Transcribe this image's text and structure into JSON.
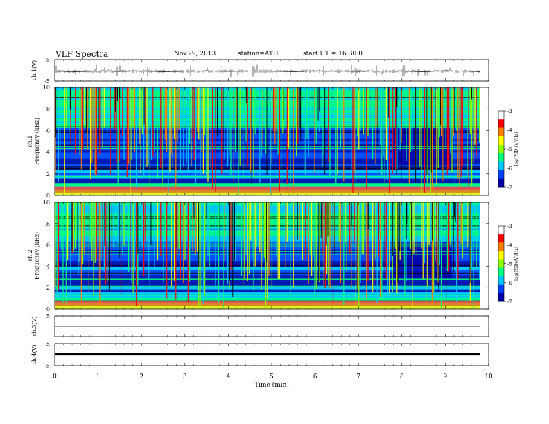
{
  "header": {
    "title": "VLF  Spectra",
    "date": "Nov.29, 2013",
    "station": "station=ATH",
    "start": "start  UT =   16:30:0"
  },
  "chart_data": [
    {
      "type": "line",
      "panel": "ch.1",
      "ylabel": "ch.1(V)",
      "ylim": [
        -5,
        5
      ],
      "yticks": [
        -5,
        5
      ],
      "x": [
        0,
        0.5,
        1.0,
        1.5,
        2.0,
        2.5,
        3.0,
        3.5,
        4.0,
        4.5,
        5.0,
        5.5,
        6.0,
        6.5,
        7.0,
        7.5,
        8.0,
        8.5,
        9.0,
        9.5,
        9.8
      ],
      "y": [
        -0.4,
        -0.6,
        -0.3,
        -0.5,
        -0.3,
        -0.6,
        -0.4,
        -0.2,
        -0.5,
        -0.3,
        -0.4,
        -0.6,
        -0.3,
        -0.4,
        -0.5,
        -0.3,
        -0.4,
        -0.6,
        -0.2,
        -0.4,
        -0.6
      ]
    },
    {
      "type": "heatmap",
      "panel": "ch.1",
      "ylabel_lines": [
        "ch.1",
        "Frequency  (kHz)"
      ],
      "ylim": [
        0,
        10
      ],
      "yticks": [
        0,
        2,
        4,
        6,
        8,
        10
      ],
      "colorbar": {
        "label": "log(PSD)(V²/Hz)",
        "range": [
          -7,
          -3
        ],
        "ticks": [
          "-3",
          "-4",
          "-5",
          "-6",
          "-7"
        ]
      },
      "notes": "broadband impulsive emissions 0-10 kHz, strongest below 1 kHz; quieter band 3-6 kHz after t=7.8 min"
    },
    {
      "type": "heatmap",
      "panel": "ch.2",
      "ylabel_lines": [
        "ch.2",
        "Frequency  (kHz)"
      ],
      "ylim": [
        0,
        10
      ],
      "yticks": [
        0,
        2,
        4,
        6,
        8,
        10
      ],
      "colorbar": {
        "label": "log(PSD)(V²/Hz)",
        "range": [
          -7,
          -3
        ],
        "ticks": [
          "-3",
          "-4",
          "-5",
          "-6",
          "-7"
        ]
      }
    },
    {
      "type": "line",
      "panel": "ch.3",
      "ylabel": "ch.3(V)",
      "ylim": [
        -5,
        5
      ],
      "yticks": [
        5
      ],
      "x": [
        0,
        9.8
      ],
      "y": [
        0,
        0
      ]
    },
    {
      "type": "line",
      "panel": "ch.4",
      "ylabel": "ch.4(V)",
      "ylim": [
        -5,
        5
      ],
      "yticks": [
        -5,
        5
      ],
      "x": [
        0,
        9.8
      ],
      "y": [
        0.2,
        0.2
      ]
    }
  ],
  "xaxis": {
    "label": "Time  (min)",
    "xlim": [
      0,
      10
    ],
    "ticks": [
      "0",
      "1",
      "2",
      "3",
      "4",
      "5",
      "6",
      "7",
      "8",
      "9",
      "10"
    ]
  },
  "colors": {
    "colormap": [
      "#000000",
      "#0000a8",
      "#0040ff",
      "#00c8ff",
      "#00ff80",
      "#90ff00",
      "#ffff00",
      "#ff8000",
      "#ff0000",
      "#ffffff"
    ]
  }
}
